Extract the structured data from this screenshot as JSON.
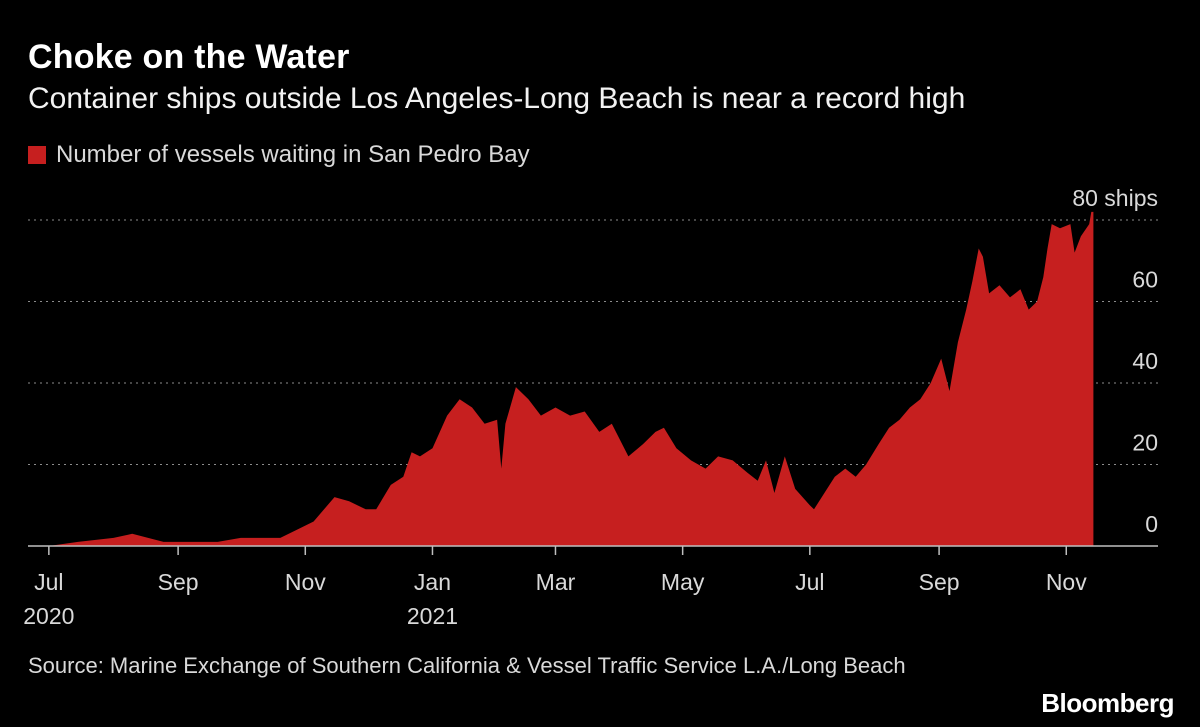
{
  "title": "Choke on the Water",
  "subtitle": "Container ships outside Los Angeles-Long Beach is near a record high",
  "source": "Source: Marine Exchange of Southern California & Vessel Traffic Service L.A./Long Beach",
  "brand": "Bloomberg",
  "colors": {
    "background": "#000000",
    "series": "#c61f1f",
    "grid": "#8c8c8c",
    "text": "#d9d9d9"
  },
  "chart_data": {
    "type": "area",
    "title": "Choke on the Water",
    "subtitle": "Container ships outside Los Angeles-Long Beach is near a record high",
    "legend_position": "top-left",
    "grid": true,
    "grid_style": "dotted horizontal",
    "y_axis": {
      "position": "right",
      "ylim": [
        0,
        80
      ],
      "ticks": [
        0,
        20,
        40,
        60,
        80
      ],
      "tick_labels": [
        "0",
        "20",
        "40",
        "60",
        "80 ships"
      ]
    },
    "x_axis": {
      "xlim": [
        "2020-06-21",
        "2021-12-15"
      ],
      "ticks": [
        {
          "date": "2020-07-01",
          "label": "Jul",
          "year": "2020"
        },
        {
          "date": "2020-09-01",
          "label": "Sep",
          "year": ""
        },
        {
          "date": "2020-11-01",
          "label": "Nov",
          "year": ""
        },
        {
          "date": "2021-01-01",
          "label": "Jan",
          "year": "2021"
        },
        {
          "date": "2021-03-01",
          "label": "Mar",
          "year": ""
        },
        {
          "date": "2021-05-01",
          "label": "May",
          "year": ""
        },
        {
          "date": "2021-07-01",
          "label": "Jul",
          "year": ""
        },
        {
          "date": "2021-09-01",
          "label": "Sep",
          "year": ""
        },
        {
          "date": "2021-11-01",
          "label": "Nov",
          "year": ""
        }
      ]
    },
    "series": [
      {
        "name": "Number of vessels waiting in San Pedro Bay",
        "color": "#c61f1f",
        "points": [
          [
            "2020-07-01",
            0
          ],
          [
            "2020-07-15",
            1
          ],
          [
            "2020-08-01",
            2
          ],
          [
            "2020-08-10",
            3
          ],
          [
            "2020-08-25",
            1
          ],
          [
            "2020-09-05",
            1
          ],
          [
            "2020-09-20",
            1
          ],
          [
            "2020-10-01",
            2
          ],
          [
            "2020-10-15",
            2
          ],
          [
            "2020-10-20",
            2
          ],
          [
            "2020-10-28",
            4
          ],
          [
            "2020-11-05",
            6
          ],
          [
            "2020-11-15",
            12
          ],
          [
            "2020-11-22",
            11
          ],
          [
            "2020-11-30",
            9
          ],
          [
            "2020-12-05",
            9
          ],
          [
            "2020-12-12",
            15
          ],
          [
            "2020-12-18",
            17
          ],
          [
            "2020-12-22",
            23
          ],
          [
            "2020-12-26",
            22
          ],
          [
            "2021-01-01",
            24
          ],
          [
            "2021-01-08",
            32
          ],
          [
            "2021-01-14",
            36
          ],
          [
            "2021-01-20",
            34
          ],
          [
            "2021-01-26",
            30
          ],
          [
            "2021-02-01",
            31
          ],
          [
            "2021-02-03",
            19
          ],
          [
            "2021-02-05",
            30
          ],
          [
            "2021-02-10",
            39
          ],
          [
            "2021-02-16",
            36
          ],
          [
            "2021-02-22",
            32
          ],
          [
            "2021-03-01",
            34
          ],
          [
            "2021-03-08",
            32
          ],
          [
            "2021-03-15",
            33
          ],
          [
            "2021-03-22",
            28
          ],
          [
            "2021-03-28",
            30
          ],
          [
            "2021-04-05",
            22
          ],
          [
            "2021-04-12",
            25
          ],
          [
            "2021-04-18",
            28
          ],
          [
            "2021-04-22",
            29
          ],
          [
            "2021-04-28",
            24
          ],
          [
            "2021-05-05",
            21
          ],
          [
            "2021-05-12",
            19
          ],
          [
            "2021-05-18",
            22
          ],
          [
            "2021-05-25",
            21
          ],
          [
            "2021-06-01",
            18
          ],
          [
            "2021-06-06",
            16
          ],
          [
            "2021-06-10",
            21
          ],
          [
            "2021-06-14",
            13
          ],
          [
            "2021-06-19",
            22
          ],
          [
            "2021-06-24",
            14
          ],
          [
            "2021-07-01",
            10
          ],
          [
            "2021-07-03",
            9
          ],
          [
            "2021-07-08",
            13
          ],
          [
            "2021-07-13",
            17
          ],
          [
            "2021-07-18",
            19
          ],
          [
            "2021-07-23",
            17
          ],
          [
            "2021-07-28",
            20
          ],
          [
            "2021-08-03",
            25
          ],
          [
            "2021-08-08",
            29
          ],
          [
            "2021-08-13",
            31
          ],
          [
            "2021-08-18",
            34
          ],
          [
            "2021-08-23",
            36
          ],
          [
            "2021-08-28",
            40
          ],
          [
            "2021-09-02",
            46
          ],
          [
            "2021-09-06",
            38
          ],
          [
            "2021-09-10",
            50
          ],
          [
            "2021-09-14",
            58
          ],
          [
            "2021-09-17",
            65
          ],
          [
            "2021-09-20",
            73
          ],
          [
            "2021-09-22",
            71
          ],
          [
            "2021-09-25",
            62
          ],
          [
            "2021-09-30",
            64
          ],
          [
            "2021-10-05",
            61
          ],
          [
            "2021-10-10",
            63
          ],
          [
            "2021-10-14",
            58
          ],
          [
            "2021-10-18",
            60
          ],
          [
            "2021-10-21",
            66
          ],
          [
            "2021-10-23",
            73
          ],
          [
            "2021-10-25",
            79
          ],
          [
            "2021-10-29",
            78
          ],
          [
            "2021-11-03",
            79
          ],
          [
            "2021-11-05",
            72
          ],
          [
            "2021-11-08",
            76
          ],
          [
            "2021-11-12",
            79
          ],
          [
            "2021-11-13",
            82
          ],
          [
            "2021-11-14",
            82
          ]
        ]
      }
    ]
  }
}
